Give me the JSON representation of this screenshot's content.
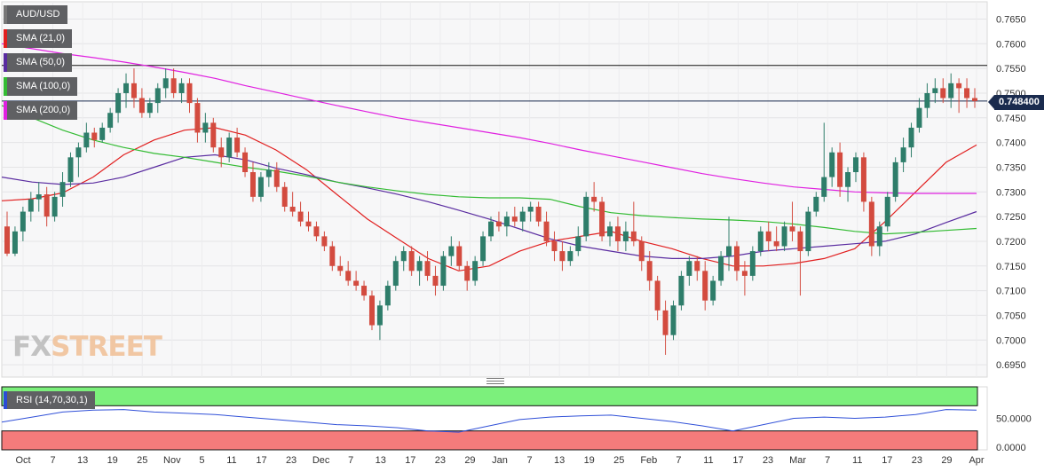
{
  "chart_data": [
    {
      "type": "candlestick",
      "symbol": "AUD/USD",
      "ylim": [
        0.6925,
        0.7685
      ],
      "y_ticks": [
        "0.7650",
        "0.7600",
        "0.7550",
        "0.7500",
        "0.7450",
        "0.7400",
        "0.7350",
        "0.7300",
        "0.7250",
        "0.7200",
        "0.7150",
        "0.7100",
        "0.7050",
        "0.7000",
        "0.6950"
      ],
      "x_ticks": [
        "Oct",
        "7",
        "13",
        "19",
        "25",
        "Nov",
        "5",
        "11",
        "17",
        "23",
        "Dec",
        "7",
        "13",
        "17",
        "23",
        "29",
        "Jan",
        "7",
        "13",
        "19",
        "25",
        "Feb",
        "7",
        "11",
        "17",
        "23",
        "Mar",
        "7",
        "11",
        "17",
        "23",
        "29",
        "Apr"
      ],
      "last_price": "0.748400",
      "horizontal_lines": [
        0.7556,
        0.7484
      ],
      "candles": [
        [
          0.723,
          0.726,
          0.717,
          0.7175
        ],
        [
          0.7175,
          0.723,
          0.717,
          0.722
        ],
        [
          0.722,
          0.727,
          0.72,
          0.726
        ],
        [
          0.726,
          0.73,
          0.724,
          0.7285
        ],
        [
          0.7285,
          0.732,
          0.726,
          0.7295
        ],
        [
          0.7295,
          0.731,
          0.723,
          0.725
        ],
        [
          0.725,
          0.73,
          0.724,
          0.729
        ],
        [
          0.729,
          0.734,
          0.727,
          0.732
        ],
        [
          0.732,
          0.738,
          0.731,
          0.737
        ],
        [
          0.737,
          0.74,
          0.733,
          0.739
        ],
        [
          0.739,
          0.744,
          0.738,
          0.742
        ],
        [
          0.742,
          0.743,
          0.739,
          0.7405
        ],
        [
          0.7405,
          0.744,
          0.74,
          0.743
        ],
        [
          0.743,
          0.747,
          0.742,
          0.746
        ],
        [
          0.746,
          0.751,
          0.744,
          0.75
        ],
        [
          0.75,
          0.754,
          0.747,
          0.752
        ],
        [
          0.752,
          0.755,
          0.747,
          0.749
        ],
        [
          0.749,
          0.751,
          0.745,
          0.746
        ],
        [
          0.746,
          0.749,
          0.745,
          0.748
        ],
        [
          0.748,
          0.752,
          0.746,
          0.751
        ],
        [
          0.751,
          0.755,
          0.749,
          0.753
        ],
        [
          0.753,
          0.755,
          0.749,
          0.75
        ],
        [
          0.75,
          0.753,
          0.748,
          0.752
        ],
        [
          0.752,
          0.753,
          0.746,
          0.748
        ],
        [
          0.748,
          0.749,
          0.74,
          0.742
        ],
        [
          0.742,
          0.746,
          0.74,
          0.744
        ],
        [
          0.744,
          0.745,
          0.738,
          0.739
        ],
        [
          0.739,
          0.741,
          0.735,
          0.737
        ],
        [
          0.737,
          0.742,
          0.736,
          0.741
        ],
        [
          0.741,
          0.743,
          0.737,
          0.738
        ],
        [
          0.738,
          0.739,
          0.733,
          0.734
        ],
        [
          0.734,
          0.736,
          0.728,
          0.729
        ],
        [
          0.729,
          0.734,
          0.728,
          0.733
        ],
        [
          0.733,
          0.736,
          0.731,
          0.7345
        ],
        [
          0.7345,
          0.736,
          0.73,
          0.731
        ],
        [
          0.731,
          0.732,
          0.726,
          0.727
        ],
        [
          0.727,
          0.73,
          0.725,
          0.726
        ],
        [
          0.726,
          0.728,
          0.723,
          0.724
        ],
        [
          0.724,
          0.726,
          0.722,
          0.723
        ],
        [
          0.723,
          0.724,
          0.72,
          0.721
        ],
        [
          0.721,
          0.722,
          0.718,
          0.719
        ],
        [
          0.719,
          0.72,
          0.714,
          0.715
        ],
        [
          0.715,
          0.717,
          0.713,
          0.714
        ],
        [
          0.714,
          0.716,
          0.711,
          0.712
        ],
        [
          0.712,
          0.714,
          0.71,
          0.711
        ],
        [
          0.711,
          0.712,
          0.708,
          0.709
        ],
        [
          0.709,
          0.71,
          0.702,
          0.703
        ],
        [
          0.703,
          0.708,
          0.7,
          0.707
        ],
        [
          0.707,
          0.712,
          0.706,
          0.711
        ],
        [
          0.711,
          0.717,
          0.71,
          0.716
        ],
        [
          0.716,
          0.719,
          0.714,
          0.718
        ],
        [
          0.718,
          0.719,
          0.713,
          0.714
        ],
        [
          0.714,
          0.717,
          0.711,
          0.716
        ],
        [
          0.716,
          0.718,
          0.712,
          0.713
        ],
        [
          0.713,
          0.715,
          0.709,
          0.711
        ],
        [
          0.711,
          0.718,
          0.71,
          0.717
        ],
        [
          0.717,
          0.721,
          0.715,
          0.719
        ],
        [
          0.719,
          0.72,
          0.714,
          0.715
        ],
        [
          0.715,
          0.716,
          0.71,
          0.712
        ],
        [
          0.712,
          0.717,
          0.711,
          0.716
        ],
        [
          0.716,
          0.722,
          0.715,
          0.721
        ],
        [
          0.721,
          0.725,
          0.72,
          0.724
        ],
        [
          0.724,
          0.726,
          0.722,
          0.723
        ],
        [
          0.723,
          0.726,
          0.721,
          0.725
        ],
        [
          0.725,
          0.727,
          0.723,
          0.724
        ],
        [
          0.724,
          0.727,
          0.722,
          0.726
        ],
        [
          0.726,
          0.728,
          0.724,
          0.727
        ],
        [
          0.727,
          0.728,
          0.723,
          0.724
        ],
        [
          0.724,
          0.726,
          0.719,
          0.72
        ],
        [
          0.72,
          0.722,
          0.716,
          0.718
        ],
        [
          0.718,
          0.72,
          0.714,
          0.716
        ],
        [
          0.716,
          0.719,
          0.715,
          0.718
        ],
        [
          0.718,
          0.723,
          0.717,
          0.721
        ],
        [
          0.721,
          0.73,
          0.72,
          0.729
        ],
        [
          0.729,
          0.732,
          0.726,
          0.728
        ],
        [
          0.728,
          0.729,
          0.72,
          0.721
        ],
        [
          0.721,
          0.724,
          0.719,
          0.723
        ],
        [
          0.723,
          0.725,
          0.718,
          0.72
        ],
        [
          0.72,
          0.724,
          0.718,
          0.722
        ],
        [
          0.722,
          0.728,
          0.719,
          0.72
        ],
        [
          0.72,
          0.721,
          0.714,
          0.716
        ],
        [
          0.716,
          0.718,
          0.71,
          0.712
        ],
        [
          0.712,
          0.713,
          0.704,
          0.706
        ],
        [
          0.706,
          0.708,
          0.697,
          0.701
        ],
        [
          0.701,
          0.708,
          0.7,
          0.707
        ],
        [
          0.707,
          0.714,
          0.706,
          0.713
        ],
        [
          0.713,
          0.717,
          0.711,
          0.716
        ],
        [
          0.716,
          0.717,
          0.712,
          0.714
        ],
        [
          0.714,
          0.716,
          0.706,
          0.708
        ],
        [
          0.708,
          0.713,
          0.707,
          0.712
        ],
        [
          0.712,
          0.718,
          0.711,
          0.717
        ],
        [
          0.717,
          0.725,
          0.714,
          0.719
        ],
        [
          0.719,
          0.72,
          0.712,
          0.714
        ],
        [
          0.714,
          0.716,
          0.709,
          0.713
        ],
        [
          0.713,
          0.719,
          0.712,
          0.718
        ],
        [
          0.718,
          0.723,
          0.717,
          0.722
        ],
        [
          0.722,
          0.724,
          0.718,
          0.72
        ],
        [
          0.72,
          0.723,
          0.718,
          0.719
        ],
        [
          0.719,
          0.724,
          0.718,
          0.723
        ],
        [
          0.723,
          0.728,
          0.72,
          0.722
        ],
        [
          0.722,
          0.723,
          0.709,
          0.718
        ],
        [
          0.718,
          0.727,
          0.717,
          0.726
        ],
        [
          0.726,
          0.73,
          0.725,
          0.729
        ],
        [
          0.729,
          0.744,
          0.728,
          0.733
        ],
        [
          0.733,
          0.739,
          0.731,
          0.738
        ],
        [
          0.738,
          0.74,
          0.729,
          0.731
        ],
        [
          0.731,
          0.735,
          0.728,
          0.734
        ],
        [
          0.734,
          0.738,
          0.732,
          0.737
        ],
        [
          0.737,
          0.738,
          0.726,
          0.728
        ],
        [
          0.728,
          0.729,
          0.717,
          0.719
        ],
        [
          0.719,
          0.724,
          0.717,
          0.723
        ],
        [
          0.723,
          0.73,
          0.722,
          0.729
        ],
        [
          0.729,
          0.737,
          0.728,
          0.736
        ],
        [
          0.736,
          0.741,
          0.734,
          0.739
        ],
        [
          0.739,
          0.744,
          0.737,
          0.743
        ],
        [
          0.743,
          0.749,
          0.742,
          0.747
        ],
        [
          0.747,
          0.752,
          0.745,
          0.75
        ],
        [
          0.75,
          0.753,
          0.748,
          0.751
        ],
        [
          0.751,
          0.753,
          0.748,
          0.749
        ],
        [
          0.749,
          0.754,
          0.747,
          0.752
        ],
        [
          0.752,
          0.753,
          0.746,
          0.751
        ],
        [
          0.751,
          0.753,
          0.747,
          0.749
        ],
        [
          0.749,
          0.751,
          0.747,
          0.7484
        ]
      ],
      "indicators": [
        {
          "name": "SMA (21,0)",
          "color": "#e11f1f",
          "values": [
            0.7282,
            0.7286,
            0.7298,
            0.733,
            0.7375,
            0.7405,
            0.7425,
            0.743,
            0.7415,
            0.7385,
            0.7345,
            0.7295,
            0.7245,
            0.7205,
            0.7165,
            0.714,
            0.715,
            0.718,
            0.72,
            0.721,
            0.722,
            0.72,
            0.7185,
            0.7165,
            0.715,
            0.715,
            0.7155,
            0.7165,
            0.7185,
            0.724,
            0.73,
            0.736,
            0.7395
          ]
        },
        {
          "name": "SMA (50,0)",
          "color": "#5a2ca0",
          "values": [
            0.733,
            0.732,
            0.7315,
            0.7318,
            0.733,
            0.735,
            0.737,
            0.7375,
            0.7365,
            0.7348,
            0.7335,
            0.732,
            0.7308,
            0.7295,
            0.728,
            0.7263,
            0.7245,
            0.7225,
            0.7205,
            0.719,
            0.718,
            0.717,
            0.7165,
            0.7165,
            0.717,
            0.718,
            0.7185,
            0.719,
            0.7195,
            0.72,
            0.7215,
            0.7238,
            0.726
          ]
        },
        {
          "name": "SMA (100,0)",
          "color": "#33bb33",
          "values": [
            0.7475,
            0.745,
            0.7425,
            0.7405,
            0.739,
            0.7378,
            0.737,
            0.736,
            0.735,
            0.7342,
            0.7332,
            0.732,
            0.731,
            0.7302,
            0.7295,
            0.729,
            0.7288,
            0.7288,
            0.7285,
            0.727,
            0.7258,
            0.7252,
            0.7248,
            0.7245,
            0.7243,
            0.724,
            0.7235,
            0.7228,
            0.722,
            0.7215,
            0.7218,
            0.7222,
            0.7226
          ]
        },
        {
          "name": "SMA (200,0)",
          "color": "#e020e0",
          "values": [
            0.76,
            0.759,
            0.758,
            0.7572,
            0.7563,
            0.7553,
            0.7542,
            0.753,
            0.7515,
            0.7502,
            0.7488,
            0.7475,
            0.7462,
            0.745,
            0.744,
            0.743,
            0.742,
            0.741,
            0.7398,
            0.7385,
            0.7373,
            0.7361,
            0.7349,
            0.7337,
            0.7327,
            0.7318,
            0.731,
            0.7305,
            0.73,
            0.7298,
            0.7297,
            0.7297,
            0.7297
          ]
        }
      ]
    },
    {
      "type": "line",
      "name": "RSI (14,70,30,1)",
      "ylim": [
        0,
        100
      ],
      "y_ticks": [
        "50.0000",
        "0.0000"
      ],
      "overbought": 70,
      "oversold": 30,
      "values": [
        44,
        52,
        60,
        63,
        64,
        60,
        58,
        56,
        52,
        48,
        44,
        40,
        38,
        35,
        30,
        28,
        38,
        48,
        52,
        54,
        55,
        50,
        45,
        38,
        30,
        40,
        50,
        52,
        50,
        52,
        56,
        64,
        63
      ]
    }
  ],
  "legend": {
    "symbol": "AUD/USD",
    "sma21": "SMA (21,0)",
    "sma50": "SMA (50,0)",
    "sma100": "SMA (100,0)",
    "sma200": "SMA (200,0)",
    "rsi": "RSI (14,70,30,1)"
  },
  "logo": {
    "fx": "FX",
    "street": "STREET"
  },
  "colors": {
    "up": "#2e7d6a",
    "down": "#d34b3f",
    "sma21": "#e11f1f",
    "sma50": "#5a2ca0",
    "sma100": "#33bb33",
    "sma200": "#e020e0",
    "rsi": "#3050d8",
    "rsi_overbought_fill": "#7cf07c",
    "rsi_oversold_fill": "#f57b7b"
  }
}
